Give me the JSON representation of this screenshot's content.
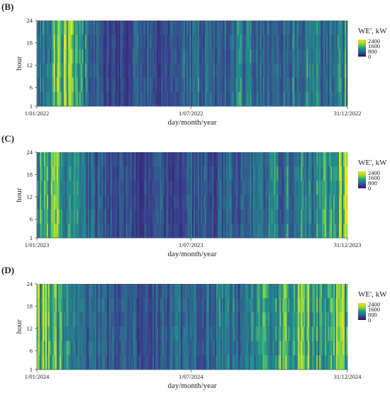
{
  "chart_data": [
    {
      "panel_label": "(B)",
      "type": "heatmap",
      "title": "",
      "xlabel": "day/month/year",
      "ylabel": "hour",
      "x_tick_labels": [
        "1/01/2022",
        "1/07/2022",
        "31/12/2022"
      ],
      "y_tick_labels": [
        "1",
        "6",
        "12",
        "18",
        "24"
      ],
      "y_range": [
        1,
        24
      ],
      "legend_title": "WE', kW",
      "legend_tick_labels": [
        "2400",
        "1600",
        "800",
        "0"
      ],
      "color_range_kw": [
        0,
        2600
      ],
      "colormap": [
        "#2c0f52",
        "#3b3b8c",
        "#2d6f8e",
        "#21918c",
        "#5ec962",
        "#b5de2b",
        "#e4e419"
      ],
      "day_profile_kw": [
        900,
        1100,
        1500,
        1800,
        1600,
        1200,
        700,
        600,
        500,
        450,
        500,
        650,
        700,
        600,
        550,
        500,
        650,
        800,
        900,
        800,
        700,
        750,
        850,
        950,
        1000,
        900,
        800,
        750,
        850,
        1000,
        1200,
        1100,
        900,
        800,
        1000,
        1300
      ]
    },
    {
      "panel_label": "(C)",
      "type": "heatmap",
      "title": "",
      "xlabel": "day/month/year",
      "ylabel": "hour",
      "x_tick_labels": [
        "1/01/2023",
        "1/07/2023",
        "31/12/2023"
      ],
      "y_tick_labels": [
        "1",
        "6",
        "12",
        "18",
        "24"
      ],
      "y_range": [
        1,
        24
      ],
      "legend_title": "WE', kW",
      "legend_tick_labels": [
        "2400",
        "1600",
        "800",
        "0"
      ],
      "color_range_kw": [
        0,
        2600
      ],
      "colormap": [
        "#2c0f52",
        "#3b3b8c",
        "#2d6f8e",
        "#21918c",
        "#5ec962",
        "#b5de2b",
        "#e4e419"
      ],
      "day_profile_kw": [
        1100,
        1400,
        1700,
        1300,
        1000,
        900,
        800,
        700,
        650,
        600,
        550,
        500,
        450,
        500,
        600,
        550,
        500,
        600,
        700,
        650,
        600,
        700,
        800,
        900,
        850,
        800,
        900,
        1000,
        950,
        900,
        1000,
        1100,
        1200,
        1300,
        1800,
        2000
      ]
    },
    {
      "panel_label": "(D)",
      "type": "heatmap",
      "title": "",
      "xlabel": "day/month/year",
      "ylabel": "hour",
      "x_tick_labels": [
        "1/01/2024",
        "1/07/2024",
        "31/12/2024"
      ],
      "y_tick_labels": [
        "1",
        "6",
        "12",
        "18",
        "24"
      ],
      "y_range": [
        1,
        24
      ],
      "legend_title": "WE', kW",
      "legend_tick_labels": [
        "2400",
        "1600",
        "800",
        "0"
      ],
      "color_range_kw": [
        0,
        2600
      ],
      "colormap": [
        "#2c0f52",
        "#3b3b8c",
        "#2d6f8e",
        "#21918c",
        "#5ec962",
        "#b5de2b",
        "#e4e419"
      ],
      "day_profile_kw": [
        1500,
        1900,
        1600,
        1200,
        1000,
        900,
        800,
        750,
        700,
        650,
        600,
        650,
        700,
        650,
        600,
        700,
        800,
        750,
        700,
        800,
        900,
        1000,
        950,
        900,
        1000,
        1100,
        1200,
        1300,
        1400,
        1500,
        1700,
        1600,
        1400,
        1800,
        1900,
        1700
      ]
    }
  ]
}
